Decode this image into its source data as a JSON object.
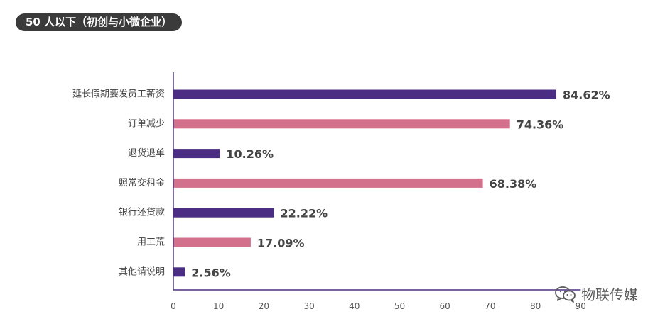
{
  "header": {
    "title": "50 人以下（初创与小微企业）"
  },
  "colors": {
    "purple": "#4b2e83",
    "pink": "#d3708c",
    "axis": "#4b2e83"
  },
  "watermark": {
    "text": "物联传媒",
    "icon": "wechat-icon"
  },
  "chart_data": {
    "type": "bar",
    "orientation": "horizontal",
    "title": "50 人以下（初创与小微企业）",
    "xlabel": "",
    "ylabel": "",
    "xlim": [
      0,
      90
    ],
    "x_ticks": [
      0,
      10,
      20,
      30,
      40,
      50,
      60,
      70,
      80,
      90
    ],
    "grid": false,
    "categories": [
      "延长假期要发员工薪资",
      "订单减少",
      "退货退单",
      "照常交租金",
      "银行还贷款",
      "用工荒",
      "其他请说明"
    ],
    "values": [
      84.62,
      74.36,
      10.26,
      68.38,
      22.22,
      17.09,
      2.56
    ],
    "value_labels": [
      "84.62%",
      "74.36%",
      "10.26%",
      "68.38%",
      "22.22%",
      "17.09%",
      "2.56%"
    ],
    "bar_colors": [
      "#4b2e83",
      "#d3708c",
      "#4b2e83",
      "#d3708c",
      "#4b2e83",
      "#d3708c",
      "#4b2e83"
    ]
  }
}
